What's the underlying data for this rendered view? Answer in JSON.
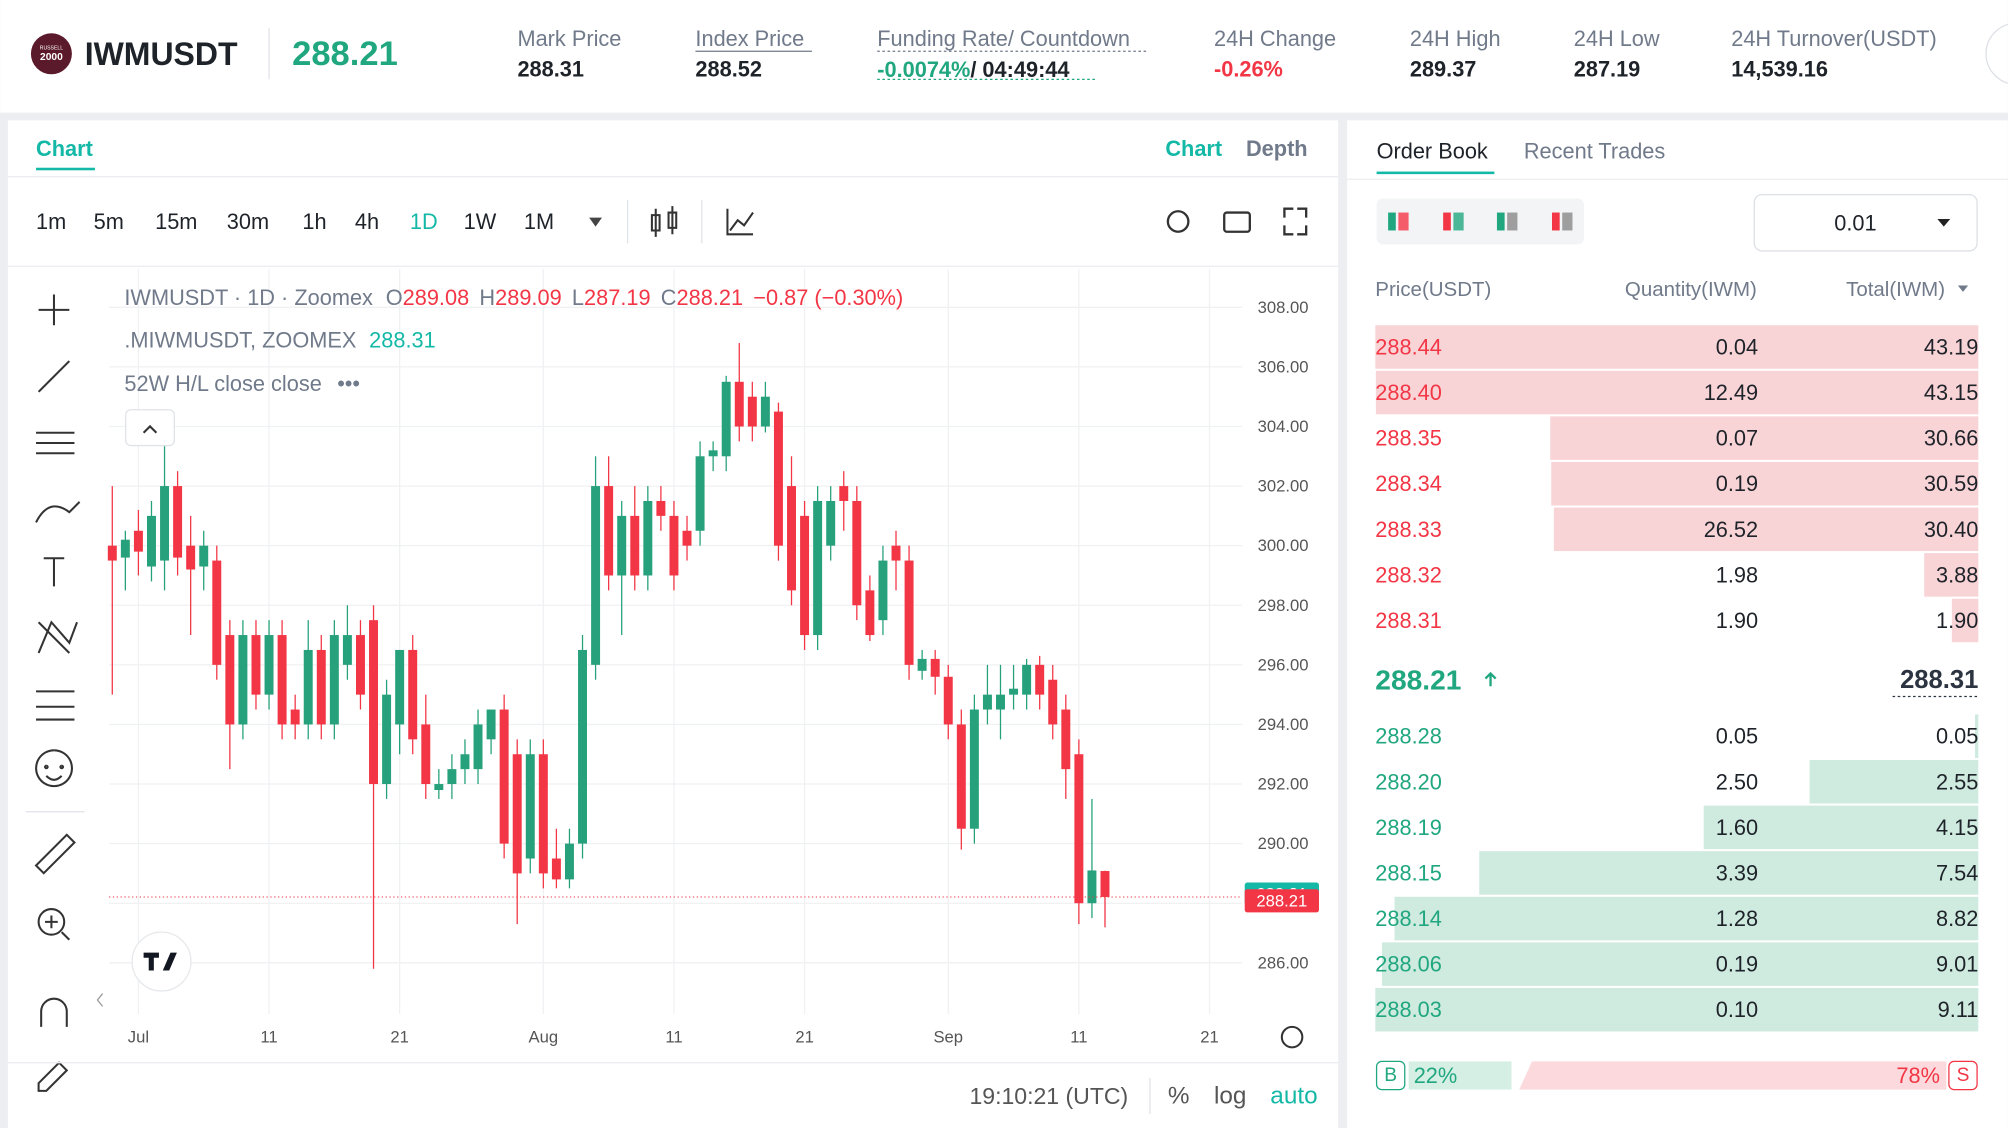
{
  "header": {
    "logo": [
      "RUSSELL",
      "2000"
    ],
    "symbol": "IWMUSDT",
    "last_price": "288.21",
    "stats": [
      {
        "label": "Mark Price",
        "value": "288.31"
      },
      {
        "label": "Index Price",
        "value": "288.52"
      },
      {
        "label": "Funding Rate/ Countdown",
        "value": "-0.0074%",
        "extra": "/ 04:49:44"
      },
      {
        "label": "24H Change",
        "value": "-0.26%"
      },
      {
        "label": "24H High",
        "value": "289.37"
      },
      {
        "label": "24H Low",
        "value": "287.19"
      },
      {
        "label": "24H Turnover(USDT)",
        "value": "14,539.16"
      }
    ]
  },
  "chart_panel": {
    "tab": "Chart",
    "view_tabs": [
      "Chart",
      "Depth"
    ],
    "intervals": [
      "1m",
      "5m",
      "15m",
      "30m",
      "1h",
      "4h",
      "1D",
      "1W",
      "1M"
    ],
    "active_interval_index": 6,
    "legend": {
      "symbol": "IWMUSDT · 1D · Zoomex",
      "ohlc": [
        {
          "label": "O",
          "value": "289.08"
        },
        {
          "label": "H",
          "value": "289.09"
        },
        {
          "label": "L",
          "value": "287.19"
        },
        {
          "label": "C",
          "value": "288.21"
        }
      ],
      "change": "−0.87 (−0.30%)",
      "index_name": ".MIWMUSDT, ZOOMEX",
      "index_value": "288.31",
      "indicator": "52W H/L close close",
      "more": "•••"
    },
    "time": "19:10:21 (UTC)",
    "scale_buttons": [
      "%",
      "log",
      "auto"
    ]
  },
  "chart": {
    "type": "candlestick",
    "up_color": "#26a17b",
    "down_color": "#f23645",
    "grid": true,
    "xlim": [
      -2.25,
      84.5
    ],
    "ylim": [
      284.28,
      309.29
    ],
    "xticks": [
      {
        "value": 0,
        "label": "Jul"
      },
      {
        "value": 10,
        "label": "11"
      },
      {
        "value": 20,
        "label": "21"
      },
      {
        "value": 31,
        "label": "Aug"
      },
      {
        "value": 41,
        "label": "11"
      },
      {
        "value": 51,
        "label": "21"
      },
      {
        "value": 62,
        "label": "Sep"
      },
      {
        "value": 72,
        "label": "11"
      },
      {
        "value": 82,
        "label": "21"
      }
    ],
    "yticks": [
      {
        "value": 286,
        "label": "286.00"
      },
      {
        "value": 288,
        "label": "288.00"
      },
      {
        "value": 290,
        "label": "290.00"
      },
      {
        "value": 292,
        "label": "292.00"
      },
      {
        "value": 294,
        "label": "294.00"
      },
      {
        "value": 296,
        "label": "296.00"
      },
      {
        "value": 298,
        "label": "298.00"
      },
      {
        "value": 300,
        "label": "300.00"
      },
      {
        "value": 302,
        "label": "302.00"
      },
      {
        "value": 304,
        "label": "304.00"
      },
      {
        "value": 306,
        "label": "306.00"
      },
      {
        "value": 308,
        "label": "308.00"
      }
    ],
    "mark_price": 288.31,
    "last_price": 288.21,
    "x": [
      -2,
      -1,
      0,
      1,
      2,
      3,
      4,
      5,
      6,
      7,
      8,
      9,
      10,
      11,
      12,
      13,
      14,
      15,
      16,
      17,
      18,
      19,
      20,
      21,
      22,
      23,
      24,
      25,
      26,
      27,
      28,
      29,
      30,
      31,
      32,
      33,
      34,
      35,
      36,
      37,
      38,
      39,
      40,
      41,
      42,
      43,
      44,
      45,
      46,
      47,
      48,
      49,
      50,
      51,
      52,
      53,
      54,
      55,
      56,
      57,
      58,
      59,
      60,
      61,
      62,
      63,
      64,
      65,
      66,
      67,
      68,
      69,
      70,
      71,
      72,
      73,
      74
    ],
    "ohlc": [
      [
        300,
        302,
        295,
        299.5
      ],
      [
        299.6,
        300.5,
        298.5,
        300.2
      ],
      [
        300.5,
        301.2,
        299,
        299.8
      ],
      [
        299.3,
        301.5,
        298.8,
        301
      ],
      [
        299.5,
        304,
        298.5,
        302
      ],
      [
        302,
        302.5,
        299,
        299.6
      ],
      [
        300,
        301,
        297,
        299.2
      ],
      [
        299.3,
        300.5,
        298.5,
        300
      ],
      [
        299.5,
        300,
        295.5,
        296
      ],
      [
        297,
        297.5,
        292.5,
        294
      ],
      [
        294,
        297.5,
        293.5,
        297
      ],
      [
        297,
        297.5,
        294.5,
        295
      ],
      [
        295,
        297.5,
        294.5,
        297
      ],
      [
        297,
        297.5,
        293.5,
        294
      ],
      [
        294.5,
        295,
        293.5,
        294
      ],
      [
        294,
        297.5,
        293.5,
        296.5
      ],
      [
        296.5,
        297,
        293.5,
        294
      ],
      [
        294,
        297.5,
        293.5,
        297
      ],
      [
        296,
        298,
        295.5,
        297
      ],
      [
        297,
        297.5,
        294.5,
        295
      ],
      [
        297.5,
        298,
        285.8,
        292
      ],
      [
        292,
        295.5,
        291.5,
        295
      ],
      [
        294,
        296.5,
        293,
        296.5
      ],
      [
        296.5,
        297,
        293,
        293.5
      ],
      [
        294,
        295,
        291.5,
        292
      ],
      [
        291.8,
        292.5,
        291.5,
        292
      ],
      [
        292,
        293,
        291.5,
        292.5
      ],
      [
        292.5,
        293.5,
        292,
        293
      ],
      [
        292.5,
        294.5,
        292,
        294
      ],
      [
        293.5,
        294.5,
        293,
        294.5
      ],
      [
        294.5,
        295,
        289.5,
        290
      ],
      [
        293,
        293.5,
        287.3,
        289
      ],
      [
        289.5,
        293.5,
        289,
        293
      ],
      [
        293,
        293.5,
        288.5,
        289
      ],
      [
        289.5,
        290.5,
        288.5,
        288.8
      ],
      [
        288.8,
        290.5,
        288.5,
        290
      ],
      [
        290,
        297,
        289.5,
        296.5
      ],
      [
        296,
        303,
        295.5,
        302
      ],
      [
        302,
        303,
        298.5,
        299
      ],
      [
        299,
        301.5,
        297,
        301
      ],
      [
        301,
        302,
        298.5,
        299
      ],
      [
        299,
        302,
        298.5,
        301.5
      ],
      [
        301.5,
        302,
        300.5,
        301
      ],
      [
        301,
        301.5,
        298.5,
        299
      ],
      [
        300.5,
        301,
        299.5,
        300
      ],
      [
        300.5,
        303.5,
        300,
        303
      ],
      [
        303,
        303.5,
        302.5,
        303.2
      ],
      [
        303,
        305.7,
        302.5,
        305.5
      ],
      [
        305.5,
        306.8,
        303.5,
        304
      ],
      [
        305,
        305.5,
        303.5,
        304
      ],
      [
        304,
        305.5,
        303.8,
        305
      ],
      [
        304.5,
        304.8,
        299.5,
        300
      ],
      [
        302,
        303,
        298,
        298.5
      ],
      [
        301,
        301.5,
        296.5,
        297
      ],
      [
        297,
        302,
        296.5,
        301.5
      ],
      [
        300,
        302,
        299.5,
        301.5
      ],
      [
        302,
        302.5,
        300.5,
        301.5
      ],
      [
        301.5,
        302,
        297.5,
        298
      ],
      [
        298.5,
        299,
        296.8,
        297
      ],
      [
        297.5,
        300,
        297,
        299.5
      ],
      [
        300,
        300.5,
        298.5,
        299.5
      ],
      [
        299.5,
        300,
        295.5,
        296
      ],
      [
        295.8,
        296.5,
        295.5,
        296.2
      ],
      [
        296.2,
        296.5,
        295,
        295.6
      ],
      [
        295.6,
        296,
        293.5,
        294
      ],
      [
        294,
        294.5,
        289.8,
        290.5
      ],
      [
        290.5,
        295,
        290,
        294.5
      ],
      [
        294.5,
        296,
        294,
        295
      ],
      [
        294.5,
        296,
        293.5,
        295
      ],
      [
        295,
        296,
        294.5,
        295.2
      ],
      [
        295,
        296.2,
        294.5,
        296
      ],
      [
        296,
        296.3,
        294.5,
        295
      ],
      [
        295.5,
        296,
        293.5,
        294
      ],
      [
        294.5,
        295,
        291.5,
        292.5
      ],
      [
        293,
        293.5,
        287.3,
        288
      ],
      [
        288,
        291.5,
        287.5,
        289.1
      ],
      [
        289.08,
        289.09,
        287.19,
        288.21
      ]
    ]
  },
  "order_book": {
    "tabs": [
      "Order Book",
      "Recent Trades"
    ],
    "precision": "0.01",
    "columns": [
      "Price(USDT)",
      "Quantity(IWM)",
      "Total(IWM)"
    ],
    "asks": [
      [
        "288.44",
        "0.04",
        "43.19"
      ],
      [
        "288.40",
        "12.49",
        "43.15"
      ],
      [
        "288.35",
        "0.07",
        "30.66"
      ],
      [
        "288.34",
        "0.19",
        "30.59"
      ],
      [
        "288.33",
        "26.52",
        "30.40"
      ],
      [
        "288.32",
        "1.98",
        "3.88"
      ],
      [
        "288.31",
        "1.90",
        "1.90"
      ]
    ],
    "last_price": "288.21",
    "mark_price": "288.31",
    "bids": [
      [
        "288.28",
        "0.05",
        "0.05"
      ],
      [
        "288.20",
        "2.50",
        "2.55"
      ],
      [
        "288.19",
        "1.60",
        "4.15"
      ],
      [
        "288.15",
        "3.39",
        "7.54"
      ],
      [
        "288.14",
        "1.28",
        "8.82"
      ],
      [
        "288.06",
        "0.19",
        "9.01"
      ],
      [
        "288.03",
        "0.10",
        "9.11"
      ]
    ],
    "buy_badge": "B",
    "buy_ratio": "22%",
    "sell_ratio": "78%",
    "sell_badge": "S"
  }
}
